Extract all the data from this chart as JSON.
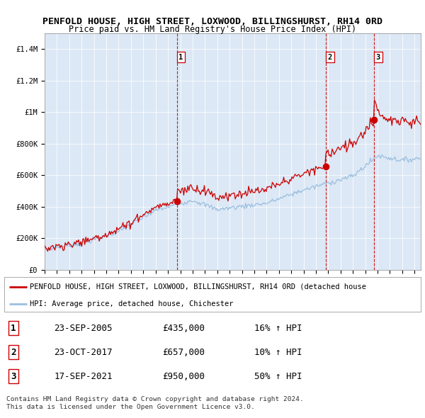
{
  "title1": "PENFOLD HOUSE, HIGH STREET, LOXWOOD, BILLINGSHURST, RH14 0RD",
  "title2": "Price paid vs. HM Land Registry's House Price Index (HPI)",
  "ylabel_ticks": [
    "£0",
    "£200K",
    "£400K",
    "£600K",
    "£800K",
    "£1M",
    "£1.2M",
    "£1.4M"
  ],
  "ytick_values": [
    0,
    200000,
    400000,
    600000,
    800000,
    1000000,
    1200000,
    1400000
  ],
  "ylim": [
    0,
    1500000
  ],
  "xlim_start": 1995.0,
  "xlim_end": 2025.5,
  "transaction_dates": [
    2005.73,
    2017.81,
    2021.72
  ],
  "transaction_prices": [
    435000,
    657000,
    950000
  ],
  "transaction_labels": [
    "1",
    "2",
    "3"
  ],
  "transaction_info": [
    {
      "label": "1",
      "date": "23-SEP-2005",
      "price": "£435,000",
      "hpi": "16% ↑ HPI"
    },
    {
      "label": "2",
      "date": "23-OCT-2017",
      "price": "£657,000",
      "hpi": "10% ↑ HPI"
    },
    {
      "label": "3",
      "date": "17-SEP-2021",
      "price": "£950,000",
      "hpi": "50% ↑ HPI"
    }
  ],
  "legend_entries": [
    "PENFOLD HOUSE, HIGH STREET, LOXWOOD, BILLINGSHURST, RH14 0RD (detached house",
    "HPI: Average price, detached house, Chichester"
  ],
  "hpi_color": "#9bbfe0",
  "price_color": "#cc0000",
  "transaction_marker_color": "#cc0000",
  "dashed_line_color": "#cc0000",
  "chart_bg_color": "#dce8f5",
  "background_color": "#ffffff",
  "grid_color": "#aaaacc",
  "footer_text": "Contains HM Land Registry data © Crown copyright and database right 2024.\nThis data is licensed under the Open Government Licence v3.0.",
  "title1_fontsize": 9.5,
  "title2_fontsize": 8.5,
  "axis_fontsize": 7.5,
  "legend_fontsize": 8,
  "table_fontsize": 9
}
